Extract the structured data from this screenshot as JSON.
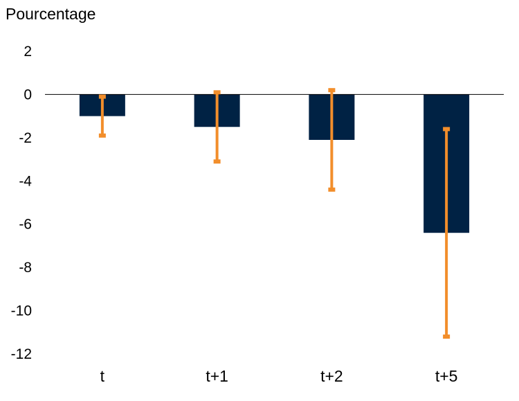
{
  "chart_data": {
    "type": "bar",
    "ylabel": "Pourcentage",
    "xlabel": "",
    "categories": [
      "t",
      "t+1",
      "t+2",
      "t+5"
    ],
    "series": [
      {
        "values": [
          -1.0,
          -1.5,
          -2.1,
          -6.4
        ],
        "error_low": [
          -1.9,
          -3.1,
          -4.4,
          -11.2
        ],
        "error_high": [
          -0.1,
          0.1,
          0.2,
          -1.6
        ]
      }
    ],
    "ylim": [
      -12,
      2
    ],
    "yticks": [
      2,
      0,
      -2,
      -4,
      -6,
      -8,
      -10,
      -12
    ],
    "grid": false,
    "legend": "none",
    "colors": {
      "bar": "#002244",
      "error_bar": "#f28e2b",
      "zero_line": "#000000"
    }
  }
}
